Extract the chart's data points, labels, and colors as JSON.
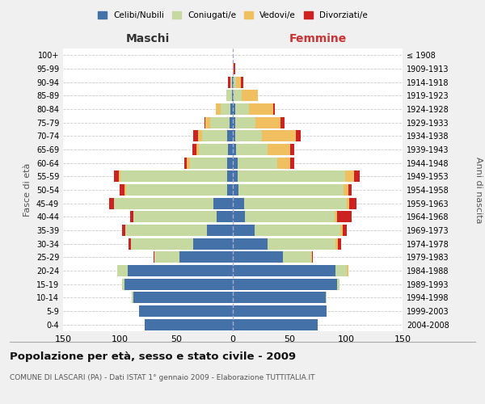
{
  "age_groups": [
    "0-4",
    "5-9",
    "10-14",
    "15-19",
    "20-24",
    "25-29",
    "30-34",
    "35-39",
    "40-44",
    "45-49",
    "50-54",
    "55-59",
    "60-64",
    "65-69",
    "70-74",
    "75-79",
    "80-84",
    "85-89",
    "90-94",
    "95-99",
    "100+"
  ],
  "birth_years": [
    "2004-2008",
    "1999-2003",
    "1994-1998",
    "1989-1993",
    "1984-1988",
    "1979-1983",
    "1974-1978",
    "1969-1973",
    "1964-1968",
    "1959-1963",
    "1954-1958",
    "1949-1953",
    "1944-1948",
    "1939-1943",
    "1934-1938",
    "1929-1933",
    "1924-1928",
    "1919-1923",
    "1914-1918",
    "1909-1913",
    "≤ 1908"
  ],
  "maschi": {
    "celibi": [
      78,
      83,
      88,
      96,
      93,
      47,
      35,
      23,
      14,
      17,
      5,
      5,
      5,
      4,
      5,
      3,
      2,
      1,
      1,
      0,
      0
    ],
    "coniugati": [
      0,
      0,
      1,
      2,
      9,
      22,
      55,
      72,
      74,
      88,
      89,
      94,
      33,
      26,
      22,
      17,
      9,
      5,
      1,
      0,
      0
    ],
    "vedovi": [
      0,
      0,
      0,
      0,
      0,
      0,
      0,
      0,
      0,
      0,
      2,
      2,
      3,
      2,
      4,
      4,
      4,
      0,
      0,
      0,
      0
    ],
    "divorziati": [
      0,
      0,
      0,
      0,
      0,
      1,
      2,
      3,
      3,
      4,
      4,
      4,
      2,
      4,
      4,
      1,
      0,
      0,
      2,
      0,
      0
    ]
  },
  "femmine": {
    "nubili": [
      75,
      83,
      82,
      92,
      91,
      44,
      31,
      19,
      11,
      10,
      5,
      4,
      4,
      3,
      2,
      2,
      2,
      1,
      1,
      0,
      0
    ],
    "coniugate": [
      0,
      0,
      1,
      2,
      10,
      25,
      60,
      76,
      79,
      91,
      93,
      95,
      35,
      28,
      24,
      18,
      12,
      7,
      2,
      0,
      0
    ],
    "vedove": [
      0,
      0,
      0,
      0,
      1,
      1,
      2,
      2,
      2,
      2,
      4,
      8,
      12,
      20,
      30,
      22,
      22,
      14,
      4,
      1,
      0
    ],
    "divorziate": [
      0,
      0,
      0,
      0,
      0,
      1,
      3,
      4,
      13,
      6,
      3,
      5,
      3,
      3,
      4,
      4,
      1,
      0,
      2,
      1,
      0
    ]
  },
  "colors": {
    "celibi": "#4472a8",
    "coniugati": "#c5d9a0",
    "vedovi": "#f0c060",
    "divorziati": "#cc2222"
  },
  "xlim": 150,
  "title": "Popolazione per età, sesso e stato civile - 2009",
  "subtitle": "COMUNE DI LASCARI (PA) - Dati ISTAT 1° gennaio 2009 - Elaborazione TUTTITALIA.IT",
  "xlabel_left": "Maschi",
  "xlabel_right": "Femmine",
  "ylabel_left": "Fasce di età",
  "ylabel_right": "Anni di nascita",
  "bg_color": "#f0f0f0",
  "plot_bg_color": "#ffffff"
}
